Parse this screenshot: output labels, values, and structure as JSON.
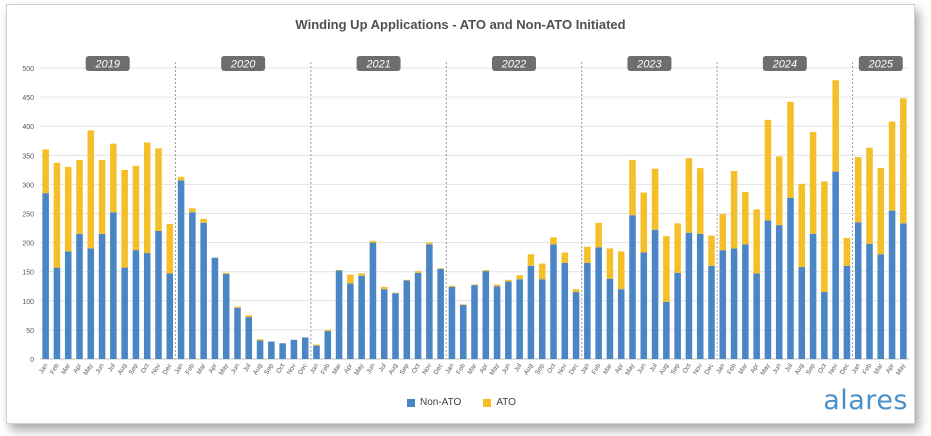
{
  "chart_data": {
    "type": "bar",
    "stacked": true,
    "title": "Winding Up Applications - ATO and Non-ATO Initiated",
    "ylim": [
      0,
      500
    ],
    "yticks": [
      0,
      50,
      100,
      150,
      200,
      250,
      300,
      350,
      400,
      450,
      500
    ],
    "grid": true,
    "legend_position": "bottom-center",
    "years": [
      "2019",
      "2020",
      "2021",
      "2022",
      "2023",
      "2024",
      "2025"
    ],
    "months_per_year": [
      12,
      12,
      12,
      12,
      12,
      12,
      5
    ],
    "categories": [
      "Jan",
      "Feb",
      "Mar",
      "Apr",
      "May",
      "Jun",
      "Jul",
      "Aug",
      "Sep",
      "Oct",
      "Nov",
      "Dec",
      "Jan",
      "Feb",
      "Mar",
      "Apr",
      "May",
      "Jun",
      "Jul",
      "Aug",
      "Sep",
      "Oct",
      "Nov",
      "Dec",
      "Jan",
      "Feb",
      "Mar",
      "Apr",
      "May",
      "Jun",
      "Jul",
      "Aug",
      "Sep",
      "Oct",
      "Nov",
      "Dec",
      "Jan",
      "Feb",
      "Mar",
      "Apr",
      "May",
      "Jun",
      "Jul",
      "Aug",
      "Sep",
      "Oct",
      "Nov",
      "Dec",
      "Jan",
      "Feb",
      "Mar",
      "Apr",
      "May",
      "Jun",
      "Jul",
      "Aug",
      "Sep",
      "Oct",
      "Nov",
      "Dec",
      "Jan",
      "Feb",
      "Mar",
      "Apr",
      "May",
      "Jun",
      "Jul",
      "Aug",
      "Sep",
      "Oct",
      "Nov",
      "Dec",
      "Jan",
      "Feb",
      "Mar",
      "Apr",
      "May"
    ],
    "series": [
      {
        "name": "Non-ATO",
        "color": "#4a86c5",
        "values": [
          285,
          157,
          185,
          215,
          190,
          215,
          252,
          157,
          187,
          182,
          220,
          147,
          307,
          252,
          234,
          174,
          146,
          88,
          72,
          32,
          30,
          27,
          33,
          37,
          23,
          48,
          152,
          130,
          143,
          200,
          120,
          113,
          135,
          148,
          197,
          155,
          124,
          93,
          127,
          151,
          125,
          133,
          137,
          160,
          137,
          197,
          165,
          115,
          165,
          192,
          138,
          120,
          247,
          183,
          222,
          98,
          148,
          217,
          215,
          160,
          187,
          190,
          197,
          147,
          238,
          230,
          277,
          158,
          215,
          115,
          322,
          160,
          235,
          198,
          180,
          255,
          233
        ]
      },
      {
        "name": "ATO",
        "color": "#f5bf2a",
        "values": [
          75,
          180,
          145,
          127,
          203,
          127,
          118,
          168,
          145,
          190,
          142,
          85,
          6,
          7,
          7,
          0,
          2,
          2,
          3,
          2,
          0,
          0,
          0,
          0,
          2,
          2,
          1,
          15,
          4,
          3,
          4,
          1,
          1,
          3,
          3,
          1,
          2,
          1,
          1,
          2,
          3,
          3,
          7,
          20,
          27,
          12,
          18,
          5,
          28,
          42,
          52,
          65,
          95,
          103,
          105,
          113,
          85,
          128,
          113,
          52,
          62,
          133,
          90,
          110,
          173,
          118,
          165,
          143,
          175,
          190,
          157,
          48,
          112,
          165,
          148,
          153,
          215
        ]
      }
    ]
  },
  "legend": {
    "items": [
      {
        "label": "Non-ATO",
        "color": "#4a86c5"
      },
      {
        "label": "ATO",
        "color": "#f5bf2a"
      }
    ]
  },
  "brand": "alares"
}
